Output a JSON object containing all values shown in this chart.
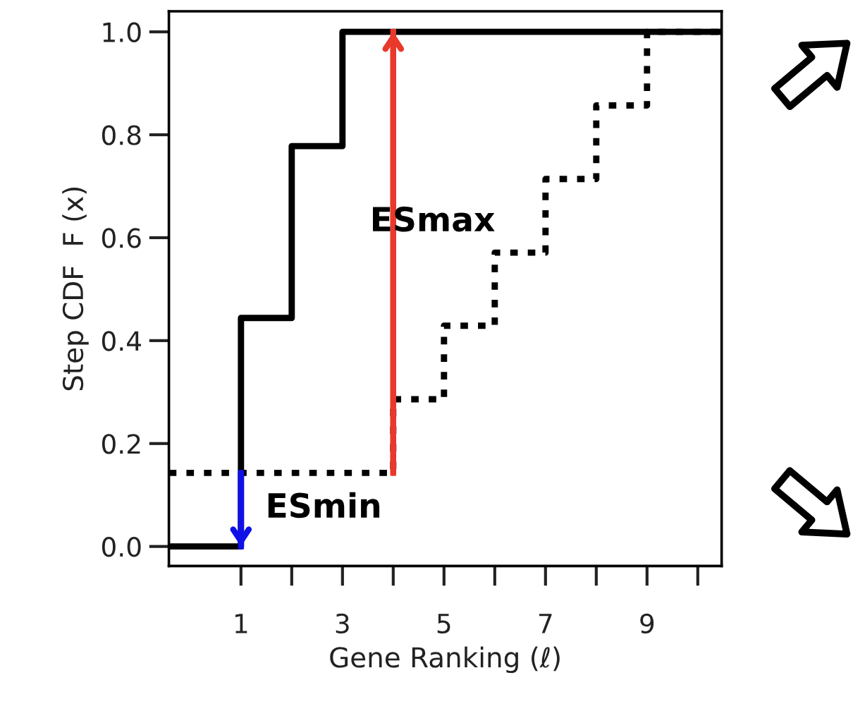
{
  "chart_data": {
    "type": "step",
    "xlabel": "Gene Ranking (ℓ)",
    "ylabel": "Step CDF  F (x)",
    "xlim": [
      -0.42,
      10.47
    ],
    "ylim": [
      -0.038,
      1.04
    ],
    "xticks": [
      1,
      {
        "value": 2,
        "label": null
      },
      3,
      {
        "value": 4,
        "label": null
      },
      5,
      {
        "value": 6,
        "label": null
      },
      7,
      {
        "value": 8,
        "label": null
      },
      9,
      {
        "value": 10,
        "label": null
      }
    ],
    "yticks": [
      {
        "value": 0,
        "label": "0.0"
      },
      0.2,
      0.4,
      0.6,
      0.8,
      {
        "value": 1,
        "label": "1.0"
      }
    ],
    "grid": false,
    "marker": "none",
    "series": [
      {
        "color": "#000000",
        "line_style": "solid",
        "x": [
          -0.42,
          1,
          2,
          3,
          10.47
        ],
        "values": [
          0,
          0.444,
          0.778,
          1,
          1
        ]
      },
      {
        "color": "#000000",
        "line_style": "dashed",
        "x": [
          -0.42,
          4,
          5,
          6,
          7,
          8,
          9,
          10.47
        ],
        "values": [
          0.143,
          0.286,
          0.429,
          0.571,
          0.714,
          0.857,
          1,
          1
        ]
      },
      {
        "type": "line",
        "color": "#e8392b",
        "line_style": "solid",
        "x": [
          4,
          4
        ],
        "values": [
          0.143,
          1
        ]
      },
      {
        "type": "line",
        "color": "#1010e8",
        "line_style": "solid",
        "x": [
          1,
          1
        ],
        "values": [
          0.143,
          0
        ]
      }
    ],
    "annotations": [
      "ESmax",
      "ESmin"
    ]
  }
}
